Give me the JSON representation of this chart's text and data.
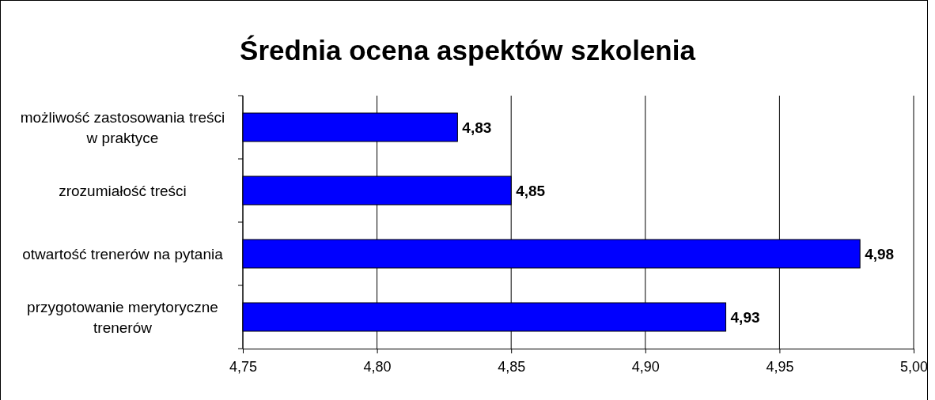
{
  "chart_data": {
    "type": "bar",
    "orientation": "horizontal",
    "title": "Średnia ocena aspektów szkolenia",
    "categories": [
      "możliwość zastosowania treści w praktyce",
      "zrozumiałość treści",
      "otwartość trenerów na pytania",
      "przygotowanie merytoryczne trenerów"
    ],
    "values": [
      4.83,
      4.85,
      4.98,
      4.93
    ],
    "value_labels": [
      "4,83",
      "4,85",
      "4,98",
      "4,93"
    ],
    "color": "#0000ff",
    "xlim": [
      4.75,
      5.0
    ],
    "xticks": [
      {
        "value": 4.75,
        "label": "4,75"
      },
      {
        "value": 4.8,
        "label": "4,80"
      },
      {
        "value": 4.85,
        "label": "4,85"
      },
      {
        "value": 4.9,
        "label": "4,90"
      },
      {
        "value": 4.95,
        "label": "4,95"
      },
      {
        "value": 5.0,
        "label": "5,00"
      }
    ],
    "grid": "x"
  }
}
